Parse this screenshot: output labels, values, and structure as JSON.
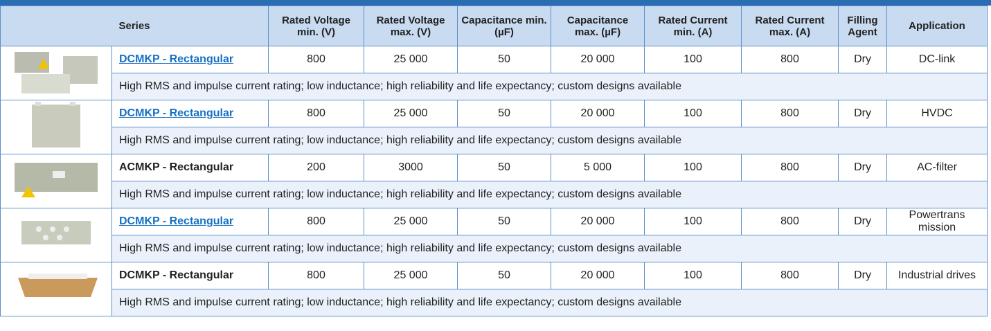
{
  "header": {
    "columns": [
      "Series",
      "Rated Voltage min. (V)",
      "Rated Voltage max. (V)",
      "Capacitance min. (µF)",
      "Capacitance max. (µF)",
      "Rated Current min. (A)",
      "Rated Current max. (A)",
      "Filling Agent",
      "Application"
    ]
  },
  "rows": [
    {
      "series": "DCMKP - Rectangular",
      "linked": true,
      "cells": [
        "800",
        "25 000",
        "50",
        "20 000",
        "100",
        "800",
        "Dry",
        "DC-link"
      ],
      "description": "High RMS and impulse current rating; low inductance; high reliability and life expectancy; custom designs available"
    },
    {
      "series": "DCMKP - Rectangular",
      "linked": true,
      "cells": [
        "800",
        "25 000",
        "50",
        "20 000",
        "100",
        "800",
        "Dry",
        "HVDC"
      ],
      "description": "High RMS and impulse current rating; low inductance; high reliability and life expectancy; custom designs available"
    },
    {
      "series": "ACMKP - Rectangular",
      "linked": false,
      "cells": [
        "200",
        "3000",
        "50",
        "5 000",
        "100",
        "800",
        "Dry",
        "AC-filter"
      ],
      "description": "High RMS and impulse current rating; low inductance; high reliability and life expectancy; custom designs available"
    },
    {
      "series": "DCMKP - Rectangular",
      "linked": true,
      "cells": [
        "800",
        "25 000",
        "50",
        "20 000",
        "100",
        "800",
        "Dry",
        "Powertrans mission"
      ],
      "description": "High RMS and impulse current rating; low inductance; high reliability and life expectancy; custom designs available"
    },
    {
      "series": "DCMKP - Rectangular",
      "linked": false,
      "cells": [
        "800",
        "25 000",
        "50",
        "20 000",
        "100",
        "800",
        "Dry",
        "Industrial drives"
      ],
      "description": "High RMS and impulse current rating; low inductance; high reliability and life expectancy; custom designs available"
    }
  ]
}
